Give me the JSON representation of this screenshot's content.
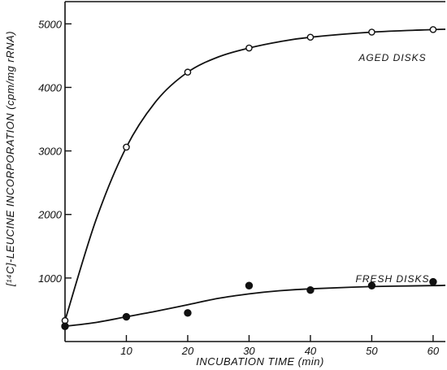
{
  "chart_data": {
    "type": "scatter",
    "title": "",
    "xlabel": "INCUBATION TIME (min)",
    "ylabel": "[¹⁴C]-LEUCINE INCORPORATION (cpm/mg rRNA)",
    "xlim": [
      0,
      62
    ],
    "ylim": [
      0,
      5350
    ],
    "xticks": [
      10,
      20,
      30,
      40,
      50,
      60
    ],
    "yticks": [
      1000,
      2000,
      3000,
      4000,
      5000
    ],
    "grid": false,
    "series": [
      {
        "name": "AGED DISKS",
        "marker": "open-circle",
        "x": [
          0,
          10,
          20,
          30,
          40,
          50,
          60
        ],
        "y": [
          330,
          3060,
          4240,
          4620,
          4790,
          4870,
          4910
        ],
        "curve": [
          [
            0,
            330
          ],
          [
            5,
            1900
          ],
          [
            10,
            3060
          ],
          [
            15,
            3800
          ],
          [
            20,
            4240
          ],
          [
            25,
            4480
          ],
          [
            30,
            4620
          ],
          [
            35,
            4720
          ],
          [
            40,
            4790
          ],
          [
            50,
            4870
          ],
          [
            60,
            4910
          ],
          [
            62,
            4915
          ]
        ]
      },
      {
        "name": "FRESH DISKS",
        "marker": "filled-circle",
        "x": [
          0,
          10,
          20,
          30,
          40,
          50,
          60
        ],
        "y": [
          240,
          390,
          450,
          880,
          810,
          880,
          940
        ],
        "curve": [
          [
            0,
            240
          ],
          [
            5,
            300
          ],
          [
            10,
            390
          ],
          [
            15,
            480
          ],
          [
            20,
            580
          ],
          [
            25,
            680
          ],
          [
            30,
            750
          ],
          [
            35,
            800
          ],
          [
            40,
            830
          ],
          [
            50,
            865
          ],
          [
            60,
            880
          ],
          [
            62,
            885
          ]
        ]
      }
    ]
  }
}
